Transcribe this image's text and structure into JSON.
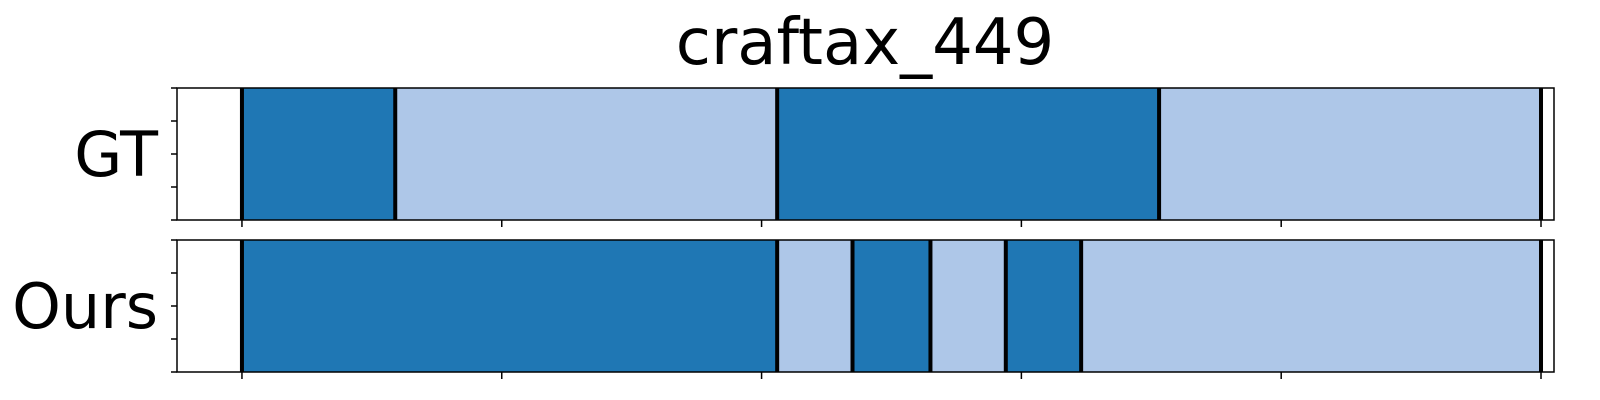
{
  "chart_data": {
    "type": "segmentation-timeline",
    "title": "craftax_449",
    "x_range": [
      -25,
      505
    ],
    "x_ticks": [
      0,
      100,
      200,
      300,
      400,
      500
    ],
    "colors": {
      "dark": "#1f77b4",
      "light": "#aec7e8",
      "boundary": "#000000"
    },
    "rows": [
      {
        "label": "GT",
        "segments": [
          {
            "start": 0,
            "end": 59,
            "class": "dark"
          },
          {
            "start": 59,
            "end": 206,
            "class": "light"
          },
          {
            "start": 206,
            "end": 353,
            "class": "dark"
          },
          {
            "start": 353,
            "end": 500,
            "class": "light"
          }
        ]
      },
      {
        "label": "Ours",
        "segments": [
          {
            "start": 0,
            "end": 206,
            "class": "dark"
          },
          {
            "start": 206,
            "end": 235,
            "class": "light"
          },
          {
            "start": 235,
            "end": 265,
            "class": "dark"
          },
          {
            "start": 265,
            "end": 294,
            "class": "light"
          },
          {
            "start": 294,
            "end": 323,
            "class": "dark"
          },
          {
            "start": 323,
            "end": 500,
            "class": "light"
          }
        ]
      }
    ]
  }
}
